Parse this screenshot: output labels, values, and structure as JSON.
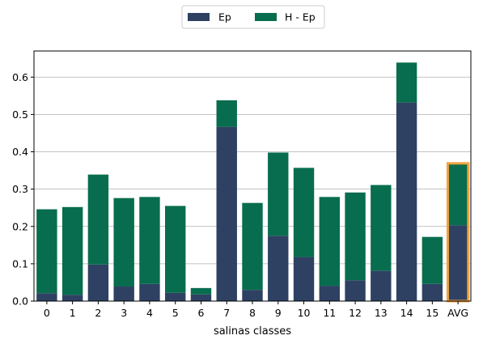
{
  "chart_data": {
    "type": "bar",
    "stacked": true,
    "categories": [
      "0",
      "1",
      "2",
      "3",
      "4",
      "5",
      "6",
      "7",
      "8",
      "9",
      "10",
      "11",
      "12",
      "13",
      "14",
      "15",
      "AVG"
    ],
    "series": [
      {
        "name": "Ep",
        "color": "#2e4163",
        "values": [
          0.021,
          0.017,
          0.098,
          0.039,
          0.046,
          0.022,
          0.018,
          0.467,
          0.03,
          0.175,
          0.118,
          0.041,
          0.056,
          0.081,
          0.532,
          0.046,
          0.203
        ]
      },
      {
        "name": "H - Ep",
        "color": "#086d4e",
        "values": [
          0.225,
          0.235,
          0.241,
          0.237,
          0.233,
          0.233,
          0.017,
          0.071,
          0.233,
          0.223,
          0.239,
          0.238,
          0.235,
          0.23,
          0.107,
          0.126,
          0.166
        ]
      }
    ],
    "highlight": {
      "category": "AVG",
      "color": "#f2a340"
    },
    "xlabel": "salinas classes",
    "ylabel": "",
    "ylim": [
      0,
      0.67
    ],
    "yticks": [
      0.0,
      0.1,
      0.2,
      0.3,
      0.4,
      0.5,
      0.6
    ],
    "grid": "y",
    "legend_placement": "top-center"
  }
}
